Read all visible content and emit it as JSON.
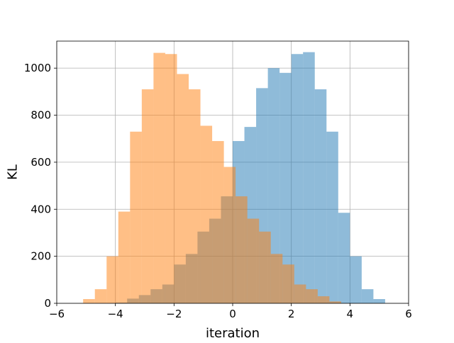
{
  "chart_data": {
    "type": "bar",
    "title": "",
    "xlabel": "iteration",
    "ylabel": "KL",
    "xlim": [
      -6,
      6
    ],
    "ylim": [
      0,
      1115
    ],
    "xticks": [
      -6,
      -4,
      -2,
      0,
      2,
      4,
      6
    ],
    "yticks": [
      0,
      200,
      400,
      600,
      800,
      1000
    ],
    "grid": true,
    "legend": "none",
    "bin_width": 0.4,
    "series": [
      {
        "color": "#1f77b4",
        "alpha": 0.5,
        "bins": [
          {
            "x0": -4.0,
            "x1": -3.6,
            "value": 3
          },
          {
            "x0": -3.6,
            "x1": -3.2,
            "value": 20
          },
          {
            "x0": -3.2,
            "x1": -2.8,
            "value": 35
          },
          {
            "x0": -2.8,
            "x1": -2.4,
            "value": 60
          },
          {
            "x0": -2.4,
            "x1": -2.0,
            "value": 80
          },
          {
            "x0": -2.0,
            "x1": -1.6,
            "value": 165
          },
          {
            "x0": -1.6,
            "x1": -1.2,
            "value": 210
          },
          {
            "x0": -1.2,
            "x1": -0.8,
            "value": 305
          },
          {
            "x0": -0.8,
            "x1": -0.4,
            "value": 360
          },
          {
            "x0": -0.4,
            "x1": 0.0,
            "value": 455
          },
          {
            "x0": 0.0,
            "x1": 0.4,
            "value": 690
          },
          {
            "x0": 0.4,
            "x1": 0.8,
            "value": 750
          },
          {
            "x0": 0.8,
            "x1": 1.2,
            "value": 915
          },
          {
            "x0": 1.2,
            "x1": 1.6,
            "value": 1000
          },
          {
            "x0": 1.6,
            "x1": 2.0,
            "value": 980
          },
          {
            "x0": 2.0,
            "x1": 2.4,
            "value": 1060
          },
          {
            "x0": 2.4,
            "x1": 2.8,
            "value": 1068
          },
          {
            "x0": 2.8,
            "x1": 3.2,
            "value": 910
          },
          {
            "x0": 3.2,
            "x1": 3.6,
            "value": 730
          },
          {
            "x0": 3.6,
            "x1": 4.0,
            "value": 385
          },
          {
            "x0": 4.0,
            "x1": 4.4,
            "value": 200
          },
          {
            "x0": 4.4,
            "x1": 4.8,
            "value": 60
          },
          {
            "x0": 4.8,
            "x1": 5.2,
            "value": 18
          }
        ]
      },
      {
        "color": "#ff7f0e",
        "alpha": 0.5,
        "bins": [
          {
            "x0": -5.1,
            "x1": -4.7,
            "value": 18
          },
          {
            "x0": -4.7,
            "x1": -4.3,
            "value": 60
          },
          {
            "x0": -4.3,
            "x1": -3.9,
            "value": 200
          },
          {
            "x0": -3.9,
            "x1": -3.5,
            "value": 390
          },
          {
            "x0": -3.5,
            "x1": -3.1,
            "value": 730
          },
          {
            "x0": -3.1,
            "x1": -2.7,
            "value": 910
          },
          {
            "x0": -2.7,
            "x1": -2.3,
            "value": 1065
          },
          {
            "x0": -2.3,
            "x1": -1.9,
            "value": 1060
          },
          {
            "x0": -1.9,
            "x1": -1.5,
            "value": 975
          },
          {
            "x0": -1.5,
            "x1": -1.1,
            "value": 910
          },
          {
            "x0": -1.1,
            "x1": -0.7,
            "value": 755
          },
          {
            "x0": -0.7,
            "x1": -0.3,
            "value": 690
          },
          {
            "x0": -0.3,
            "x1": 0.1,
            "value": 580
          },
          {
            "x0": 0.1,
            "x1": 0.5,
            "value": 455
          },
          {
            "x0": 0.5,
            "x1": 0.9,
            "value": 360
          },
          {
            "x0": 0.9,
            "x1": 1.3,
            "value": 305
          },
          {
            "x0": 1.3,
            "x1": 1.7,
            "value": 210
          },
          {
            "x0": 1.7,
            "x1": 2.1,
            "value": 165
          },
          {
            "x0": 2.1,
            "x1": 2.5,
            "value": 80
          },
          {
            "x0": 2.5,
            "x1": 2.9,
            "value": 60
          },
          {
            "x0": 2.9,
            "x1": 3.3,
            "value": 30
          },
          {
            "x0": 3.3,
            "x1": 3.7,
            "value": 8
          }
        ]
      }
    ]
  }
}
